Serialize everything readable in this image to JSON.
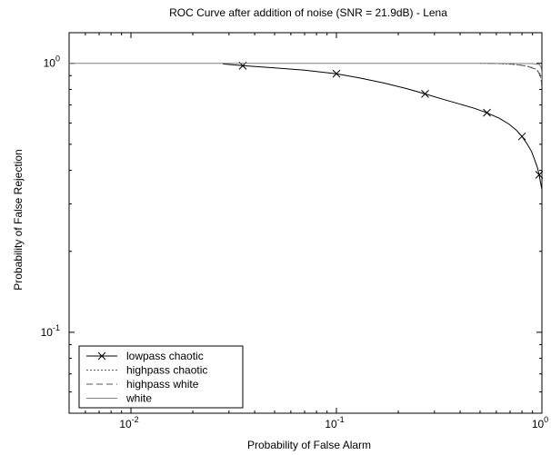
{
  "chart_data": {
    "type": "line",
    "title": "ROC Curve after addition of noise (SNR = 21.9dB) - Lena",
    "xlabel": "Probability of False Alarm",
    "ylabel": "Probability of False Rejection",
    "xscale": "log",
    "yscale": "log",
    "xlim": [
      0.005,
      1
    ],
    "ylim": [
      0.05,
      1.3
    ],
    "xticks": [
      {
        "value": 0.01,
        "base": "10",
        "exp": "-2"
      },
      {
        "value": 0.1,
        "base": "10",
        "exp": "-1"
      },
      {
        "value": 1,
        "base": "10",
        "exp": "0"
      }
    ],
    "yticks": [
      {
        "value": 0.1,
        "base": "10",
        "exp": "-1"
      },
      {
        "value": 1,
        "base": "10",
        "exp": "0"
      }
    ],
    "grid": false,
    "legend_position": "bottom-left",
    "series": [
      {
        "name": "lowpass chaotic",
        "style": "solid",
        "marker": "x",
        "color": "#000000",
        "x": [
          0.028,
          0.035,
          0.05,
          0.07,
          0.1,
          0.13,
          0.17,
          0.22,
          0.27,
          0.33,
          0.4,
          0.47,
          0.54,
          0.62,
          0.69,
          0.75,
          0.8,
          0.85,
          0.89,
          0.92,
          0.95,
          0.97,
          0.985,
          1.0
        ],
        "y": [
          0.995,
          0.98,
          0.962,
          0.943,
          0.915,
          0.882,
          0.845,
          0.805,
          0.77,
          0.735,
          0.705,
          0.68,
          0.655,
          0.625,
          0.595,
          0.565,
          0.535,
          0.5,
          0.47,
          0.44,
          0.41,
          0.385,
          0.36,
          0.34
        ],
        "marker_x": [
          0.035,
          0.1,
          0.27,
          0.54,
          0.8,
          0.97
        ],
        "marker_y": [
          0.98,
          0.915,
          0.77,
          0.655,
          0.535,
          0.385
        ]
      },
      {
        "name": "highpass chaotic",
        "style": "dotted",
        "color": "#555555",
        "x": [
          0.5,
          0.6,
          0.7,
          0.8,
          0.88,
          0.94,
          0.975,
          0.99,
          1.0
        ],
        "y": [
          1.0,
          0.998,
          0.993,
          0.983,
          0.97,
          0.95,
          0.92,
          0.88,
          0.83
        ]
      },
      {
        "name": "highpass white",
        "style": "dashed",
        "color": "#555555",
        "x": [
          0.55,
          0.65,
          0.75,
          0.85,
          0.92,
          0.96,
          0.985,
          0.995,
          1.0
        ],
        "y": [
          1.0,
          0.997,
          0.99,
          0.975,
          0.955,
          0.93,
          0.89,
          0.85,
          0.8
        ]
      },
      {
        "name": "white",
        "style": "solid",
        "color": "#808080",
        "x": [
          0.005,
          0.5,
          0.9,
          0.97,
          0.99,
          0.997,
          1.0
        ],
        "y": [
          1.0,
          1.0,
          0.998,
          0.99,
          0.97,
          0.93,
          0.87
        ]
      }
    ]
  }
}
